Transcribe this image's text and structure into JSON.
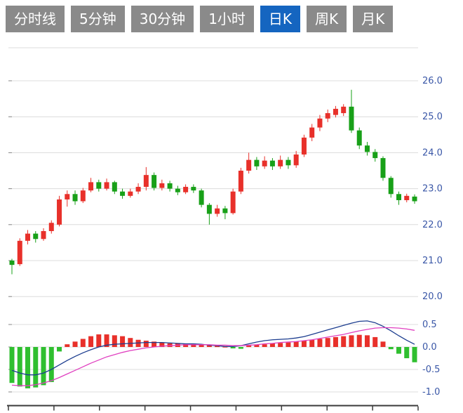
{
  "tabs": {
    "items": [
      {
        "label": "分时线",
        "active": false
      },
      {
        "label": "5分钟",
        "active": false
      },
      {
        "label": "30分钟",
        "active": false
      },
      {
        "label": "1小时",
        "active": false
      },
      {
        "label": "日K",
        "active": true
      },
      {
        "label": "周K",
        "active": false
      },
      {
        "label": "月K",
        "active": false
      }
    ]
  },
  "chart_data": {
    "type": "candlestick",
    "title": "",
    "ohlc_format": [
      "open",
      "high",
      "low",
      "close"
    ],
    "colors": {
      "up": "#e8302a",
      "down": "#18a018",
      "hist_up": "#e8302a",
      "hist_down": "#2fbf2f",
      "dif_line": "#1c3d8f",
      "dea_line": "#e040c0",
      "grid": "#dcdcdc",
      "axis": "#3a3a3a",
      "tick": "#8a8a8a",
      "label": "#3a57a7",
      "tab_bg": "#8a8a8a",
      "tab_active_bg": "#1565c0"
    },
    "y_axis": [
      {
        "value": 26.0,
        "label": "26.0"
      },
      {
        "value": 25.0,
        "label": "25.0"
      },
      {
        "value": 24.0,
        "label": "24.0"
      },
      {
        "value": 23.0,
        "label": "23.0"
      },
      {
        "value": 22.0,
        "label": "22.0"
      },
      {
        "value": 21.0,
        "label": "21.0"
      },
      {
        "value": 20.0,
        "label": "20.0"
      }
    ],
    "candles": [
      [
        21.0,
        21.05,
        20.62,
        20.88
      ],
      [
        20.9,
        21.62,
        20.85,
        21.55
      ],
      [
        21.55,
        21.85,
        21.45,
        21.75
      ],
      [
        21.75,
        21.82,
        21.5,
        21.6
      ],
      [
        21.6,
        21.9,
        21.55,
        21.82
      ],
      [
        21.82,
        22.12,
        21.75,
        22.05
      ],
      [
        22.0,
        22.8,
        21.95,
        22.7
      ],
      [
        22.7,
        22.95,
        22.5,
        22.85
      ],
      [
        22.85,
        22.95,
        22.55,
        22.65
      ],
      [
        22.65,
        23.02,
        22.6,
        22.95
      ],
      [
        22.95,
        23.3,
        22.9,
        23.18
      ],
      [
        23.18,
        23.25,
        22.92,
        23.0
      ],
      [
        23.0,
        23.28,
        22.95,
        23.18
      ],
      [
        23.18,
        23.22,
        22.85,
        22.92
      ],
      [
        22.92,
        23.0,
        22.72,
        22.8
      ],
      [
        22.8,
        23.0,
        22.75,
        22.92
      ],
      [
        22.92,
        23.15,
        22.85,
        23.05
      ],
      [
        23.05,
        23.6,
        22.95,
        23.38
      ],
      [
        23.38,
        23.45,
        22.95,
        23.02
      ],
      [
        23.02,
        23.25,
        22.95,
        23.15
      ],
      [
        23.15,
        23.22,
        22.92,
        23.0
      ],
      [
        23.0,
        23.08,
        22.82,
        22.9
      ],
      [
        22.9,
        23.12,
        22.85,
        23.05
      ],
      [
        23.05,
        23.12,
        22.88,
        22.95
      ],
      [
        22.95,
        23.0,
        22.48,
        22.55
      ],
      [
        22.55,
        22.6,
        22.0,
        22.3
      ],
      [
        22.3,
        22.55,
        22.22,
        22.45
      ],
      [
        22.45,
        22.52,
        22.15,
        22.32
      ],
      [
        22.32,
        23.0,
        22.28,
        22.92
      ],
      [
        22.92,
        23.58,
        22.85,
        23.5
      ],
      [
        23.5,
        24.0,
        23.42,
        23.8
      ],
      [
        23.8,
        23.88,
        23.52,
        23.62
      ],
      [
        23.62,
        23.9,
        23.55,
        23.78
      ],
      [
        23.78,
        23.85,
        23.52,
        23.62
      ],
      [
        23.62,
        23.92,
        23.55,
        23.8
      ],
      [
        23.8,
        23.88,
        23.55,
        23.65
      ],
      [
        23.65,
        24.05,
        23.58,
        23.95
      ],
      [
        23.95,
        24.5,
        23.88,
        24.42
      ],
      [
        24.42,
        24.8,
        24.32,
        24.7
      ],
      [
        24.7,
        25.05,
        24.6,
        24.95
      ],
      [
        24.95,
        25.2,
        24.85,
        25.1
      ],
      [
        25.05,
        25.3,
        24.98,
        25.22
      ],
      [
        25.1,
        25.35,
        25.02,
        25.28
      ],
      [
        25.28,
        25.75,
        24.55,
        24.62
      ],
      [
        24.62,
        24.7,
        24.1,
        24.2
      ],
      [
        24.2,
        24.3,
        23.92,
        24.02
      ],
      [
        24.02,
        24.1,
        23.75,
        23.85
      ],
      [
        23.85,
        23.9,
        23.22,
        23.3
      ],
      [
        23.3,
        23.35,
        22.75,
        22.85
      ],
      [
        22.85,
        22.92,
        22.55,
        22.68
      ],
      [
        22.68,
        22.86,
        22.62,
        22.8
      ],
      [
        22.78,
        22.84,
        22.58,
        22.65
      ]
    ],
    "macd": {
      "axis": [
        {
          "value": 0.5,
          "label": "0.5"
        },
        {
          "value": 0.0,
          "label": "0.0"
        },
        {
          "value": -0.5,
          "label": "-0.5"
        },
        {
          "value": -1.0,
          "label": "-1.0"
        }
      ],
      "hist": [
        -0.8,
        -0.88,
        -0.92,
        -0.9,
        -0.85,
        -0.78,
        -0.1,
        0.06,
        0.12,
        0.18,
        0.24,
        0.28,
        0.28,
        0.26,
        0.24,
        0.2,
        0.16,
        0.14,
        0.12,
        0.1,
        0.08,
        0.08,
        0.07,
        0.06,
        0.05,
        0.04,
        0.03,
        0.02,
        -0.03,
        -0.04,
        0.03,
        0.05,
        0.06,
        0.08,
        0.09,
        0.1,
        0.12,
        0.14,
        0.16,
        0.18,
        0.2,
        0.22,
        0.24,
        0.26,
        0.27,
        0.26,
        0.22,
        0.12,
        -0.05,
        -0.15,
        -0.25,
        -0.34
      ],
      "dif": [
        -0.52,
        -0.58,
        -0.62,
        -0.62,
        -0.58,
        -0.5,
        -0.4,
        -0.3,
        -0.21,
        -0.13,
        -0.06,
        0.0,
        0.04,
        0.06,
        0.07,
        0.08,
        0.09,
        0.1,
        0.1,
        0.1,
        0.09,
        0.08,
        0.07,
        0.07,
        0.06,
        0.04,
        0.03,
        0.01,
        0.01,
        0.03,
        0.07,
        0.11,
        0.14,
        0.16,
        0.17,
        0.18,
        0.2,
        0.23,
        0.28,
        0.33,
        0.38,
        0.43,
        0.48,
        0.53,
        0.57,
        0.58,
        0.54,
        0.46,
        0.36,
        0.25,
        0.15,
        0.06
      ],
      "dea": [
        -0.85,
        -0.86,
        -0.86,
        -0.84,
        -0.8,
        -0.75,
        -0.68,
        -0.6,
        -0.52,
        -0.44,
        -0.36,
        -0.29,
        -0.22,
        -0.17,
        -0.12,
        -0.08,
        -0.05,
        -0.02,
        0.0,
        0.02,
        0.03,
        0.04,
        0.05,
        0.05,
        0.05,
        0.05,
        0.04,
        0.04,
        0.03,
        0.03,
        0.04,
        0.05,
        0.07,
        0.08,
        0.1,
        0.11,
        0.12,
        0.14,
        0.16,
        0.19,
        0.22,
        0.25,
        0.28,
        0.32,
        0.36,
        0.39,
        0.42,
        0.43,
        0.43,
        0.42,
        0.4,
        0.37
      ]
    }
  }
}
